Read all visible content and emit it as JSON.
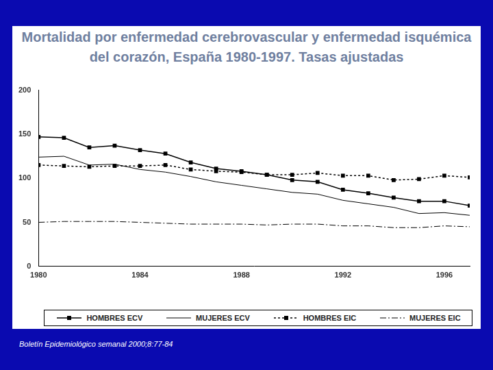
{
  "chart_data": {
    "type": "line",
    "title": "Mortalidad por enfermedad cerebrovascular y enfermedad isquémica del corazón, España 1980-1997. Tasas ajustadas",
    "source": "Boletín Epidemiológico semanal 2000;8:77-84",
    "x": [
      1980,
      1981,
      1982,
      1983,
      1984,
      1985,
      1986,
      1987,
      1988,
      1989,
      1990,
      1991,
      1992,
      1993,
      1994,
      1995,
      1996,
      1997
    ],
    "series": [
      {
        "name": "HOMBRES ECV",
        "color": "#000000",
        "marker": "square",
        "line_style": "solid",
        "values": [
          147,
          146,
          135,
          137,
          132,
          128,
          118,
          111,
          108,
          104,
          98,
          96,
          87,
          83,
          78,
          74,
          74,
          69
        ]
      },
      {
        "name": "MUJERES ECV",
        "color": "#000000",
        "marker": "none",
        "line_style": "solid",
        "values": [
          124,
          125,
          115,
          116,
          110,
          107,
          102,
          96,
          92,
          88,
          84,
          82,
          75,
          71,
          67,
          60,
          61,
          58
        ]
      },
      {
        "name": "HOMBRES EIC",
        "color": "#000000",
        "marker": "square",
        "line_style": "dotted",
        "values": [
          115,
          114,
          113,
          114,
          114,
          115,
          110,
          108,
          107,
          104,
          104,
          106,
          103,
          103,
          98,
          99,
          103,
          101
        ]
      },
      {
        "name": "MUJERES EIC",
        "color": "#000000",
        "marker": "none",
        "line_style": "dashdot",
        "values": [
          50,
          51,
          51,
          51,
          50,
          49,
          48,
          48,
          48,
          47,
          48,
          48,
          46,
          46,
          44,
          44,
          46,
          45
        ]
      }
    ],
    "xlim": [
      1980,
      1997
    ],
    "xticks": [
      1980,
      1984,
      1988,
      1992,
      1996
    ],
    "ylim": [
      0,
      200
    ],
    "yticks": [
      0,
      50,
      100,
      150,
      200
    ],
    "grid": false,
    "legend": "bottom"
  }
}
